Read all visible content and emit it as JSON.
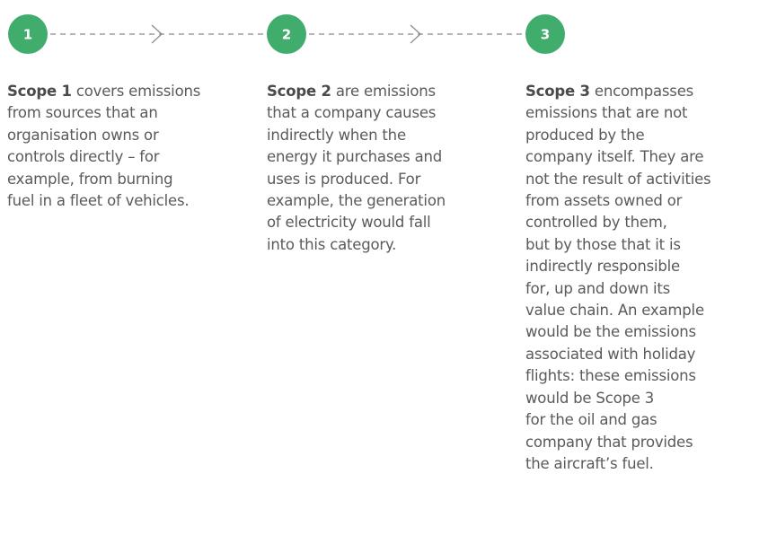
{
  "steps": [
    {
      "number": "1",
      "title": "Scope 1",
      "lines": [
        "covers emissions",
        "from sources that an",
        "organisation owns or",
        "controls directly – for",
        "example, from burning",
        "fuel in a fleet of vehicles."
      ]
    },
    {
      "number": "2",
      "title": "Scope 2",
      "lines": [
        "are emissions",
        "that a company causes",
        "indirectly when the",
        "energy it purchases and",
        "uses is produced. For",
        "example, the generation",
        "of electricity would fall",
        "into this category."
      ]
    },
    {
      "number": "3",
      "title": "Scope 3",
      "lines": [
        "encompasses",
        "emissions that are not",
        "produced by the",
        "company itself. They are",
        "not the result of activities",
        "from assets owned or",
        "controlled by them,",
        "but by those that it is",
        "indirectly responsible",
        "for, up and down its",
        "value chain. An example",
        "would be the emissions",
        "associated with holiday",
        "flights: these emissions",
        "would be Scope 3",
        "for the oil and gas",
        "company that provides",
        "the aircraft’s fuel."
      ]
    }
  ]
}
